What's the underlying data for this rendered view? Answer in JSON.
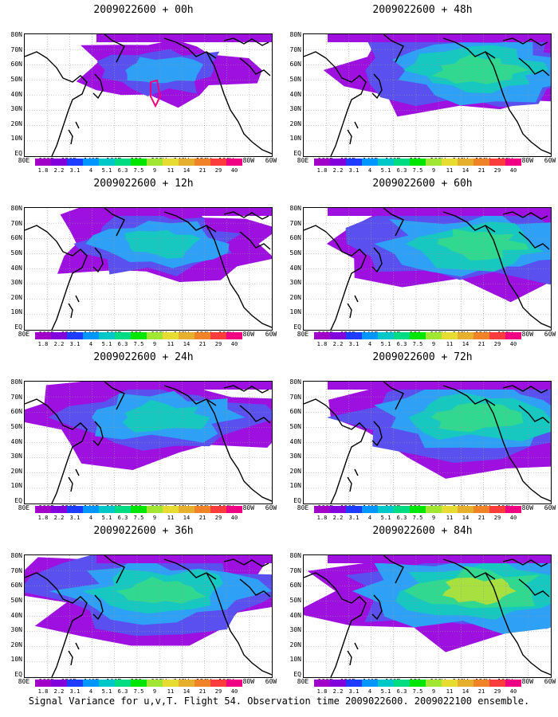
{
  "caption": "Signal Variance for u,v,T. Flight 54. Observation time 2009022600. 2009022100 ensemble.",
  "panels": [
    {
      "title": "2009022600 + 00h",
      "coverage": 0.25
    },
    {
      "title": "2009022600 + 48h",
      "coverage": 0.75
    },
    {
      "title": "2009022600 + 12h",
      "coverage": 0.45
    },
    {
      "title": "2009022600 + 60h",
      "coverage": 0.8
    },
    {
      "title": "2009022600 + 24h",
      "coverage": 0.6
    },
    {
      "title": "2009022600 + 72h",
      "coverage": 0.85
    },
    {
      "title": "2009022600 + 36h",
      "coverage": 0.7
    },
    {
      "title": "2009022600 + 84h",
      "coverage": 0.9
    }
  ],
  "lat_labels": [
    "80N",
    "70N",
    "60N",
    "50N",
    "40N",
    "30N",
    "20N",
    "10N",
    "EQ"
  ],
  "lon_labels": [
    "80E",
    "100E",
    "120E",
    "140E",
    "160E",
    "180",
    "160W",
    "140W",
    "120W",
    "100W",
    "80W",
    "60W"
  ],
  "colorbar": {
    "labels": [
      "1.8",
      "2.2",
      "3.1",
      "4",
      "5.1",
      "6.3",
      "7.5",
      "9",
      "11",
      "14",
      "21",
      "29",
      "40"
    ],
    "colors": [
      "#a000c8",
      "#8200dc",
      "#1e3cff",
      "#0096ff",
      "#00c8c8",
      "#00dc82",
      "#00e600",
      "#a0e632",
      "#e6dc32",
      "#e6af2d",
      "#f08228",
      "#fa3c3c",
      "#f00082"
    ]
  },
  "variance_fill_colors": [
    "#9d10e0",
    "#5a50f0",
    "#2ea0f5",
    "#16c8c0",
    "#30d890",
    "#a8e040"
  ]
}
